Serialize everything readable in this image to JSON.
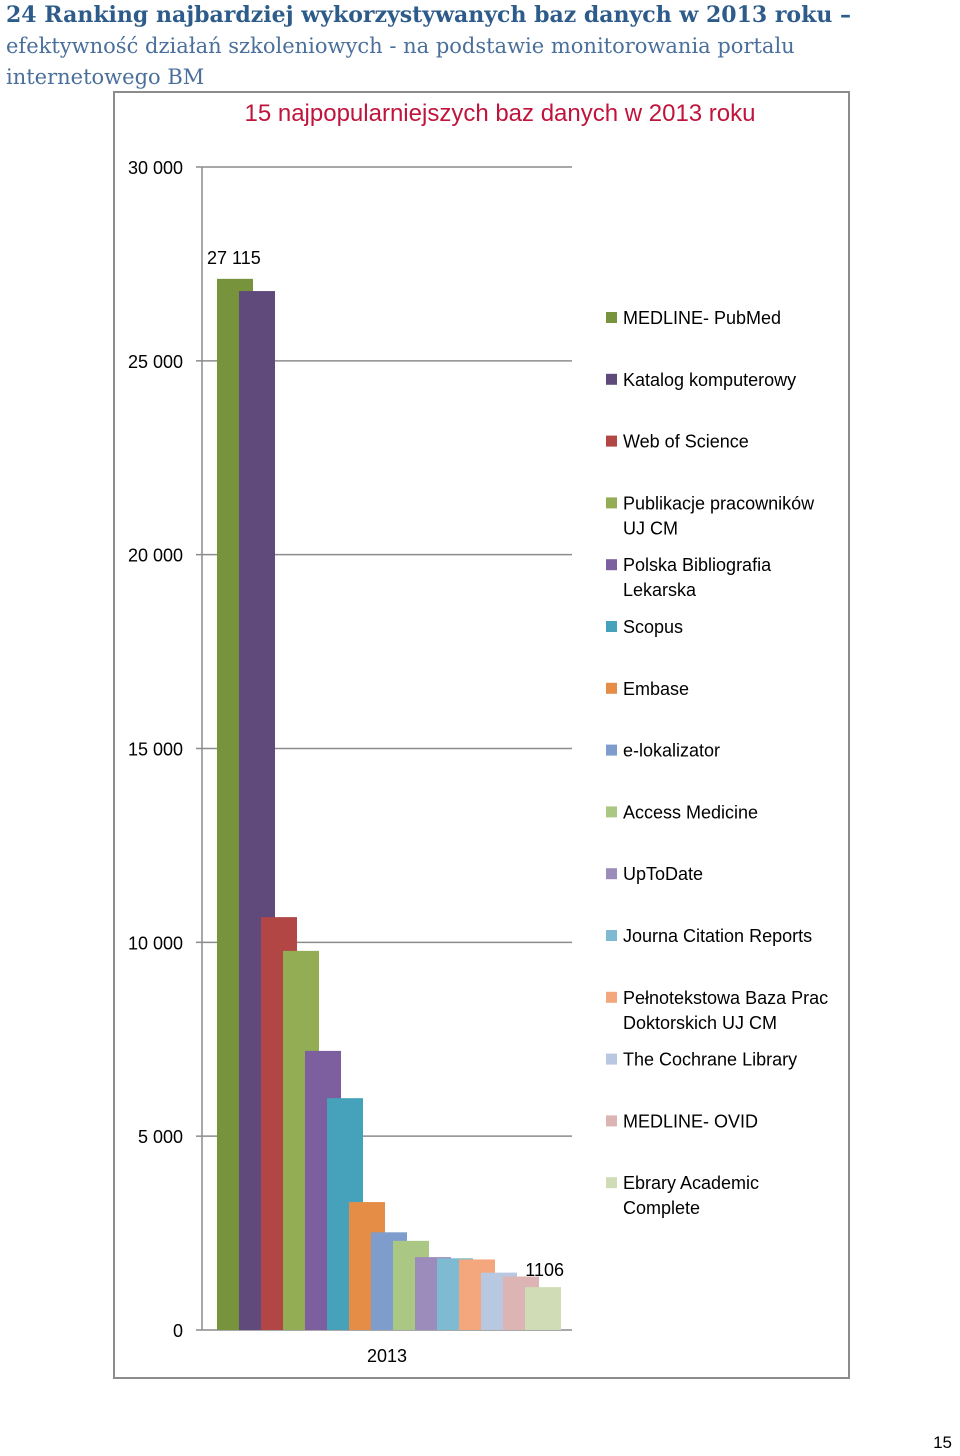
{
  "heading": {
    "title": "24 Ranking najbardziej wykorzystywanych baz danych w 2013 roku –",
    "subtitle_line1": "efektywność działań szkoleniowych - na podstawie monitorowania portalu",
    "subtitle_line2": "internetowego BM"
  },
  "page_number": "15",
  "colors": {
    "title": "#c0143c"
  },
  "chart_data": {
    "type": "bar",
    "title": "15 najpopularniejszych baz danych w 2013 roku",
    "xlabel": "",
    "ylabel": "",
    "categories": [
      "2013"
    ],
    "ylim": [
      0,
      30000
    ],
    "yticks": [
      0,
      5000,
      10000,
      15000,
      20000,
      25000,
      30000
    ],
    "ytick_labels": [
      "0",
      "5 000",
      "10 000",
      "15 000",
      "20 000",
      "25 000",
      "30 000"
    ],
    "grid": false,
    "legend_position": "right",
    "series": [
      {
        "name": "MEDLINE- PubMed",
        "values": [
          27115
        ],
        "color": "#77933c",
        "data_label": "27 115"
      },
      {
        "name": "Katalog komputerowy",
        "values": [
          26800
        ],
        "color": "#604a7b"
      },
      {
        "name": "Web of Science",
        "values": [
          10650
        ],
        "color": "#b24644"
      },
      {
        "name": "Publikacje pracowników UJ CM",
        "values": [
          9780
        ],
        "color": "#93ad55"
      },
      {
        "name": "Polska Bibliografia Lekarska",
        "values": [
          7200
        ],
        "color": "#7d5e9e"
      },
      {
        "name": "Scopus",
        "values": [
          5980
        ],
        "color": "#46a1bb"
      },
      {
        "name": "Embase",
        "values": [
          3300
        ],
        "color": "#e58d47"
      },
      {
        "name": "e-lokalizator",
        "values": [
          2520
        ],
        "color": "#7f9dcc"
      },
      {
        "name": "Access Medicine",
        "values": [
          2300
        ],
        "color": "#abc784"
      },
      {
        "name": "UpToDate",
        "values": [
          1880
        ],
        "color": "#9c8cbc"
      },
      {
        "name": "Journa Citation Reports",
        "values": [
          1850
        ],
        "color": "#7ebbd2"
      },
      {
        "name": "Pełnotekstowa Baza Prac Doktorskich UJ CM",
        "values": [
          1820
        ],
        "color": "#f4a77c"
      },
      {
        "name": "The Cochrane Library",
        "values": [
          1480
        ],
        "color": "#b8c8e0"
      },
      {
        "name": "MEDLINE- OVID",
        "values": [
          1380
        ],
        "color": "#ddb4b4"
      },
      {
        "name": "Ebrary Academic Complete",
        "values": [
          1106
        ],
        "color": "#cfdcb5",
        "data_label": "1106"
      }
    ]
  }
}
